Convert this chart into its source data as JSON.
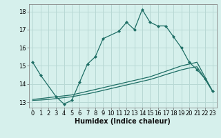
{
  "title": "",
  "xlabel": "Humidex (Indice chaleur)",
  "bg_color": "#d6f0ec",
  "line_color": "#1e6e65",
  "grid_color": "#b8d8d4",
  "xlim": [
    -0.5,
    23.5
  ],
  "ylim": [
    12.7,
    18.4
  ],
  "yticks": [
    13,
    14,
    15,
    16,
    17,
    18
  ],
  "xticks": [
    0,
    1,
    2,
    3,
    4,
    5,
    6,
    7,
    8,
    9,
    10,
    11,
    12,
    13,
    14,
    15,
    16,
    17,
    18,
    19,
    20,
    21,
    22,
    23
  ],
  "line1_x": [
    0,
    1,
    3,
    4,
    5,
    6,
    7,
    8,
    9,
    11,
    12,
    13,
    14,
    15,
    16,
    17,
    18,
    19,
    20,
    21,
    22,
    23
  ],
  "line1_y": [
    15.2,
    14.5,
    13.3,
    12.9,
    13.1,
    14.1,
    15.1,
    15.5,
    16.5,
    16.9,
    17.4,
    17.0,
    18.1,
    17.4,
    17.2,
    17.2,
    16.6,
    16.0,
    15.2,
    14.8,
    14.3,
    13.6
  ],
  "line2_x": [
    0,
    1,
    2,
    3,
    4,
    5,
    6,
    7,
    8,
    9,
    10,
    11,
    12,
    13,
    14,
    15,
    16,
    17,
    18,
    19,
    20,
    21,
    22,
    23
  ],
  "line2_y": [
    13.15,
    13.2,
    13.25,
    13.3,
    13.35,
    13.4,
    13.5,
    13.6,
    13.7,
    13.8,
    13.9,
    14.0,
    14.1,
    14.2,
    14.3,
    14.4,
    14.55,
    14.7,
    14.85,
    15.0,
    15.1,
    15.2,
    14.4,
    13.6
  ],
  "line3_x": [
    0,
    1,
    2,
    3,
    4,
    5,
    6,
    7,
    8,
    9,
    10,
    11,
    12,
    13,
    14,
    15,
    16,
    17,
    18,
    19,
    20,
    21,
    22,
    23
  ],
  "line3_y": [
    13.1,
    13.12,
    13.15,
    13.2,
    13.25,
    13.3,
    13.38,
    13.46,
    13.55,
    13.65,
    13.75,
    13.85,
    13.95,
    14.05,
    14.15,
    14.25,
    14.38,
    14.52,
    14.65,
    14.78,
    14.88,
    14.95,
    14.3,
    13.58
  ]
}
